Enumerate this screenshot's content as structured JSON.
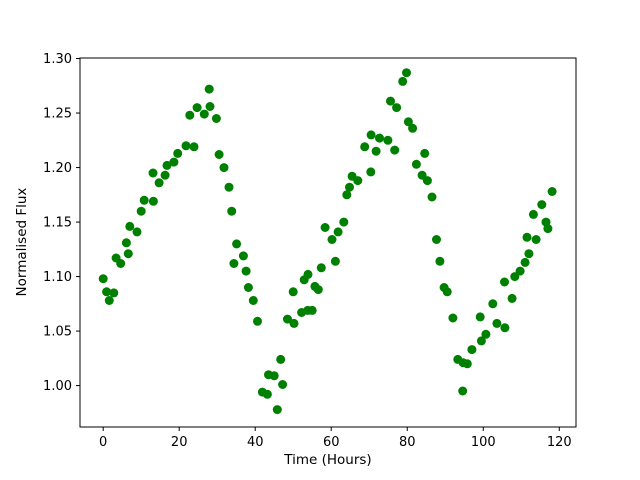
{
  "figure": {
    "background_color": "#ffffff",
    "title": ""
  },
  "chart_data": {
    "type": "scatter",
    "title": "",
    "xlabel": "Time (Hours)",
    "ylabel": "Normalised Flux",
    "xticks": [
      0,
      20,
      40,
      60,
      80,
      100,
      120
    ],
    "yticks": [
      1.0,
      1.05,
      1.1,
      1.15,
      1.2,
      1.25,
      1.3
    ],
    "xlim": [
      -6.1,
      124.4
    ],
    "ylim": [
      0.962,
      1.3005
    ],
    "grid": false,
    "legend": null,
    "marker": {
      "shape": "circle",
      "color": "#008000",
      "radius_px": 4.5
    },
    "points": [
      [
        0.0,
        1.098
      ],
      [
        0.9,
        1.086
      ],
      [
        1.6,
        1.078
      ],
      [
        2.8,
        1.085
      ],
      [
        3.4,
        1.117
      ],
      [
        4.6,
        1.112
      ],
      [
        6.1,
        1.131
      ],
      [
        6.6,
        1.121
      ],
      [
        7.0,
        1.146
      ],
      [
        8.9,
        1.141
      ],
      [
        10.0,
        1.16
      ],
      [
        10.8,
        1.17
      ],
      [
        13.1,
        1.195
      ],
      [
        13.2,
        1.169
      ],
      [
        14.7,
        1.186
      ],
      [
        16.3,
        1.193
      ],
      [
        16.8,
        1.202
      ],
      [
        18.6,
        1.205
      ],
      [
        19.6,
        1.213
      ],
      [
        21.8,
        1.22
      ],
      [
        22.8,
        1.248
      ],
      [
        23.9,
        1.219
      ],
      [
        24.7,
        1.255
      ],
      [
        26.6,
        1.249
      ],
      [
        27.9,
        1.272
      ],
      [
        28.1,
        1.256
      ],
      [
        29.8,
        1.245
      ],
      [
        30.5,
        1.212
      ],
      [
        31.8,
        1.2
      ],
      [
        33.1,
        1.182
      ],
      [
        33.8,
        1.16
      ],
      [
        34.4,
        1.112
      ],
      [
        35.1,
        1.13
      ],
      [
        36.9,
        1.119
      ],
      [
        37.6,
        1.105
      ],
      [
        38.2,
        1.09
      ],
      [
        39.5,
        1.078
      ],
      [
        40.6,
        1.059
      ],
      [
        41.9,
        0.994
      ],
      [
        43.2,
        0.992
      ],
      [
        43.5,
        1.01
      ],
      [
        45.0,
        1.009
      ],
      [
        45.8,
        0.978
      ],
      [
        46.7,
        1.024
      ],
      [
        47.2,
        1.001
      ],
      [
        48.5,
        1.061
      ],
      [
        50.0,
        1.086
      ],
      [
        50.2,
        1.057
      ],
      [
        52.2,
        1.067
      ],
      [
        52.9,
        1.097
      ],
      [
        53.8,
        1.069
      ],
      [
        53.9,
        1.102
      ],
      [
        55.0,
        1.069
      ],
      [
        55.7,
        1.091
      ],
      [
        56.6,
        1.088
      ],
      [
        57.4,
        1.108
      ],
      [
        58.4,
        1.145
      ],
      [
        60.2,
        1.134
      ],
      [
        61.1,
        1.114
      ],
      [
        61.8,
        1.141
      ],
      [
        63.3,
        1.15
      ],
      [
        64.1,
        1.175
      ],
      [
        64.8,
        1.182
      ],
      [
        65.5,
        1.192
      ],
      [
        67.0,
        1.188
      ],
      [
        68.8,
        1.219
      ],
      [
        70.4,
        1.196
      ],
      [
        70.5,
        1.23
      ],
      [
        71.8,
        1.215
      ],
      [
        72.7,
        1.227
      ],
      [
        74.9,
        1.225
      ],
      [
        75.6,
        1.261
      ],
      [
        76.7,
        1.216
      ],
      [
        77.2,
        1.255
      ],
      [
        78.8,
        1.279
      ],
      [
        79.8,
        1.287
      ],
      [
        80.3,
        1.242
      ],
      [
        81.4,
        1.236
      ],
      [
        82.4,
        1.203
      ],
      [
        83.9,
        1.193
      ],
      [
        84.6,
        1.213
      ],
      [
        85.3,
        1.188
      ],
      [
        86.5,
        1.173
      ],
      [
        87.7,
        1.134
      ],
      [
        88.6,
        1.114
      ],
      [
        89.7,
        1.09
      ],
      [
        90.5,
        1.086
      ],
      [
        92.0,
        1.062
      ],
      [
        93.3,
        1.024
      ],
      [
        94.6,
        0.995
      ],
      [
        94.7,
        1.021
      ],
      [
        95.8,
        1.02
      ],
      [
        97.0,
        1.033
      ],
      [
        99.2,
        1.063
      ],
      [
        99.5,
        1.041
      ],
      [
        100.7,
        1.047
      ],
      [
        102.5,
        1.075
      ],
      [
        103.6,
        1.057
      ],
      [
        105.6,
        1.095
      ],
      [
        105.7,
        1.053
      ],
      [
        107.6,
        1.08
      ],
      [
        108.3,
        1.1
      ],
      [
        109.7,
        1.105
      ],
      [
        111.0,
        1.113
      ],
      [
        111.5,
        1.136
      ],
      [
        112.0,
        1.121
      ],
      [
        113.2,
        1.157
      ],
      [
        113.9,
        1.134
      ],
      [
        115.4,
        1.166
      ],
      [
        116.5,
        1.15
      ],
      [
        117.0,
        1.144
      ],
      [
        118.1,
        1.178
      ]
    ]
  }
}
